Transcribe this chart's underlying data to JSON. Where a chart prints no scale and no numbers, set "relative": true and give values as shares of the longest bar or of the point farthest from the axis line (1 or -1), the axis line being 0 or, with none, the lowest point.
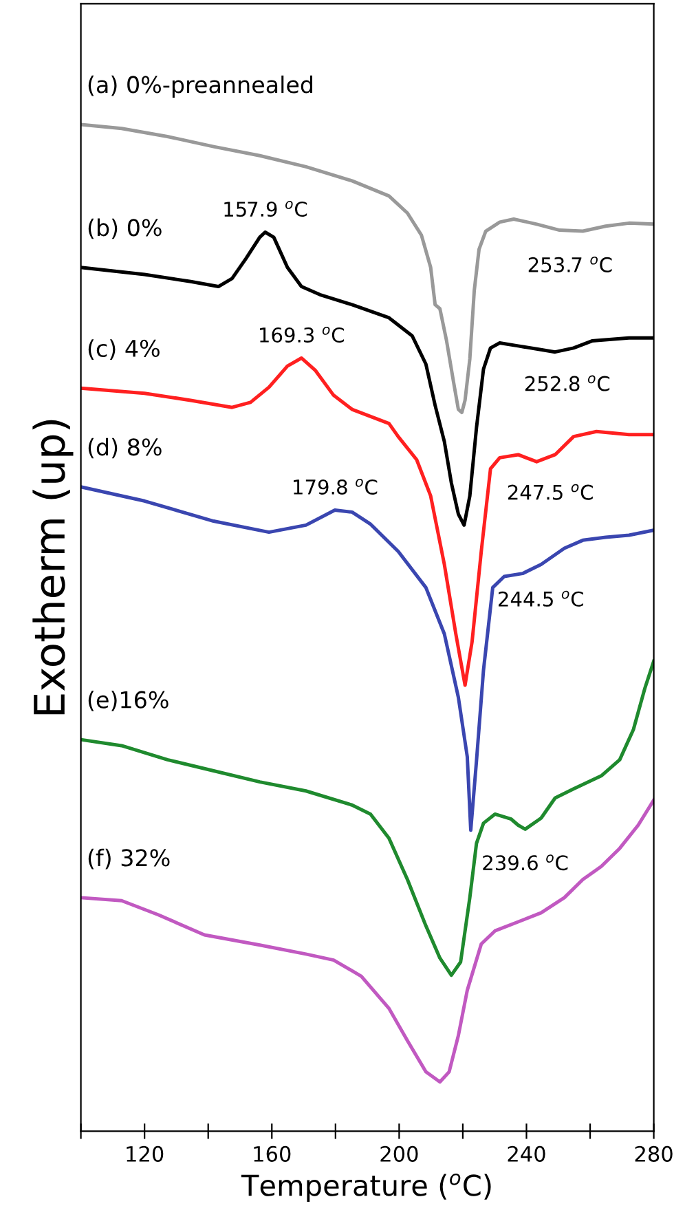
{
  "chart_data": {
    "type": "line",
    "relative": true,
    "xlabel": "Temperature ($^{o}$C)",
    "ylabel": "Exotherm (up)",
    "xlim": [
      100,
      280
    ],
    "xticks": [
      {
        "value": 100,
        "label": null
      },
      120,
      {
        "value": 140,
        "label": null
      },
      160,
      {
        "value": 180,
        "label": null
      },
      200,
      {
        "value": 220,
        "label": null
      },
      240,
      {
        "value": 260,
        "label": null
      },
      280
    ],
    "legend": false,
    "grid": false,
    "marker": "none",
    "line_style": "solid",
    "series": [
      {
        "name": "(a) 0%-preannealed",
        "color": "#999999",
        "x": [
          100,
          112.8,
          127.2,
          141.7,
          156.2,
          170.7,
          185.2,
          196.8,
          202.6,
          207,
          209.9,
          211.3,
          212.8,
          214.9,
          217.1,
          218.6,
          219.7,
          220.7,
          222.2,
          223.6,
          225.1,
          227.2,
          231.6,
          236,
          243.2,
          250.4,
          257.7,
          264.9,
          272.2,
          280
        ],
        "values": [
          1.0,
          0.996,
          0.988,
          0.978,
          0.969,
          0.958,
          0.944,
          0.929,
          0.912,
          0.89,
          0.858,
          0.821,
          0.817,
          0.785,
          0.744,
          0.717,
          0.714,
          0.726,
          0.767,
          0.835,
          0.876,
          0.894,
          0.903,
          0.906,
          0.901,
          0.895,
          0.894,
          0.899,
          0.902,
          0.901
        ]
      },
      {
        "name": "(b) 0%",
        "color": "#000000",
        "x": [
          100,
          120,
          134.5,
          143.2,
          147.5,
          151.9,
          156.2,
          157.9,
          160.6,
          164.9,
          169.3,
          175.1,
          185.2,
          196.8,
          204.1,
          208.4,
          211.3,
          214.2,
          216.4,
          218.6,
          220.4,
          222.2,
          224.3,
          226.5,
          228.7,
          231.6,
          237.4,
          243.2,
          249,
          254.8,
          260.6,
          272.2,
          280
        ],
        "values": [
          0.858,
          0.851,
          0.844,
          0.839,
          0.847,
          0.867,
          0.888,
          0.893,
          0.888,
          0.858,
          0.839,
          0.831,
          0.821,
          0.808,
          0.79,
          0.762,
          0.721,
          0.685,
          0.644,
          0.613,
          0.602,
          0.631,
          0.699,
          0.757,
          0.778,
          0.783,
          0.78,
          0.777,
          0.774,
          0.778,
          0.785,
          0.788,
          0.788
        ]
      },
      {
        "name": "(c) 4%",
        "color": "#ff2020",
        "x": [
          100,
          120,
          134.5,
          147.5,
          153.3,
          159.1,
          164.9,
          169.3,
          173.6,
          179.4,
          185.2,
          196.8,
          199.7,
          205.5,
          209.9,
          214.2,
          217.8,
          220.7,
          222.9,
          225.8,
          228.7,
          231.6,
          237.4,
          243.2,
          249,
          254.8,
          262,
          272.2,
          280
        ],
        "values": [
          0.738,
          0.733,
          0.726,
          0.719,
          0.724,
          0.739,
          0.76,
          0.768,
          0.756,
          0.731,
          0.717,
          0.703,
          0.69,
          0.667,
          0.631,
          0.563,
          0.494,
          0.443,
          0.486,
          0.576,
          0.658,
          0.669,
          0.672,
          0.665,
          0.672,
          0.69,
          0.695,
          0.692,
          0.692
        ]
      },
      {
        "name": "(d) 8%",
        "color": "#3a46b0",
        "x": [
          100,
          120,
          141.7,
          159.1,
          170.7,
          179.8,
          185.2,
          191,
          199.7,
          208.4,
          214.2,
          218.6,
          221.4,
          222.5,
          224.3,
          226.5,
          229.4,
          233,
          238.8,
          244.6,
          251.9,
          257.7,
          264.9,
          272.2,
          280
        ],
        "values": [
          0.64,
          0.626,
          0.606,
          0.595,
          0.602,
          0.617,
          0.615,
          0.603,
          0.576,
          0.54,
          0.494,
          0.431,
          0.372,
          0.299,
          0.368,
          0.458,
          0.54,
          0.551,
          0.554,
          0.563,
          0.579,
          0.587,
          0.59,
          0.592,
          0.597
        ]
      },
      {
        "name": "(e)16%",
        "color": "#1f8a2e",
        "x": [
          100,
          112.8,
          127.2,
          141.7,
          156.2,
          170.7,
          185.2,
          191,
          196.8,
          202.6,
          208.4,
          212.8,
          216.4,
          219.3,
          222.2,
          224.3,
          226.5,
          230.1,
          235.2,
          237.4,
          239.6,
          244.6,
          249,
          254.8,
          263.5,
          269.3,
          273.6,
          277.2,
          280
        ],
        "values": [
          0.389,
          0.383,
          0.369,
          0.358,
          0.347,
          0.338,
          0.324,
          0.315,
          0.291,
          0.25,
          0.204,
          0.172,
          0.155,
          0.168,
          0.232,
          0.286,
          0.306,
          0.315,
          0.31,
          0.304,
          0.3,
          0.311,
          0.331,
          0.34,
          0.353,
          0.369,
          0.399,
          0.44,
          0.467
        ]
      },
      {
        "name": "(f) 32%",
        "color": "#c159c1",
        "x": [
          100,
          112.8,
          124.3,
          138.8,
          156.2,
          170.7,
          179.4,
          188.1,
          196.8,
          202.6,
          208.4,
          212.8,
          215.7,
          218.6,
          221.4,
          225.8,
          230.1,
          237.4,
          244.6,
          251.9,
          257.7,
          263.5,
          269.3,
          275.1,
          280
        ],
        "values": [
          0.232,
          0.229,
          0.215,
          0.195,
          0.185,
          0.176,
          0.17,
          0.154,
          0.122,
          0.09,
          0.059,
          0.049,
          0.059,
          0.095,
          0.14,
          0.186,
          0.199,
          0.208,
          0.217,
          0.232,
          0.25,
          0.263,
          0.281,
          0.304,
          0.329
        ]
      }
    ],
    "annotations": [
      {
        "text": "157.9 $^{o}$C",
        "x": 157.9,
        "y": 0.893
      },
      {
        "text": "253.7 $^{o}$C",
        "x": 253.7,
        "y": 0.895
      },
      {
        "text": "169.3 $^{o}$C",
        "x": 169.3,
        "y": 0.768
      },
      {
        "text": "252.8 $^{o}$C",
        "x": 252.8,
        "y": 0.777
      },
      {
        "text": "179.8 $^{o}$C",
        "x": 179.8,
        "y": 0.617
      },
      {
        "text": "247.5 $^{o}$C",
        "x": 247.5,
        "y": 0.669
      },
      {
        "text": "244.5 $^{o}$C",
        "x": 244.5,
        "y": 0.563
      },
      {
        "text": "239.6 $^{o}$C",
        "x": 239.6,
        "y": 0.301
      }
    ]
  }
}
